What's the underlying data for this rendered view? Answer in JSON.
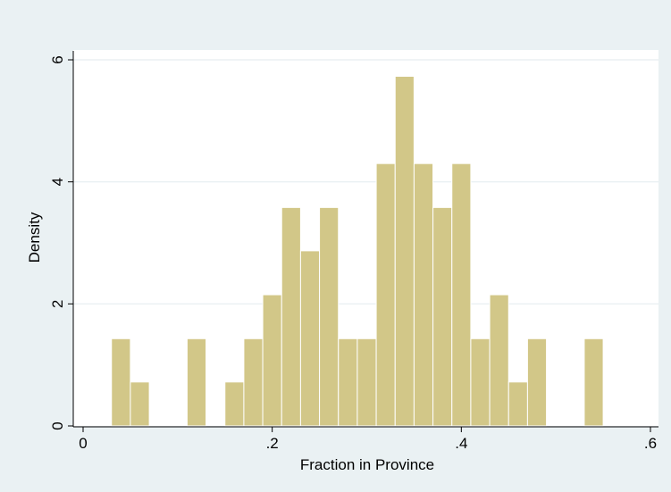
{
  "chart_data": {
    "type": "bar",
    "title": "",
    "xlabel": "Fraction in Province",
    "ylabel": "Density",
    "xlim": [
      0,
      0.6
    ],
    "ylim": [
      0,
      6
    ],
    "grid": true,
    "x_ticks": [
      0,
      0.2,
      0.4,
      0.6
    ],
    "x_tick_labels": [
      "0",
      ".2",
      ".4",
      ".6"
    ],
    "y_ticks": [
      0,
      2,
      4,
      6
    ],
    "y_tick_labels": [
      "0",
      "2",
      "4",
      "6"
    ],
    "bin_width": 0.02,
    "bins": [
      {
        "x0": 0.03,
        "x1": 0.05,
        "value": 1.43
      },
      {
        "x0": 0.05,
        "x1": 0.07,
        "value": 0.72
      },
      {
        "x0": 0.11,
        "x1": 0.13,
        "value": 1.43
      },
      {
        "x0": 0.15,
        "x1": 0.17,
        "value": 0.72
      },
      {
        "x0": 0.17,
        "x1": 0.19,
        "value": 1.43
      },
      {
        "x0": 0.19,
        "x1": 0.21,
        "value": 2.15
      },
      {
        "x0": 0.21,
        "x1": 0.23,
        "value": 3.58
      },
      {
        "x0": 0.23,
        "x1": 0.25,
        "value": 2.87
      },
      {
        "x0": 0.25,
        "x1": 0.27,
        "value": 3.58
      },
      {
        "x0": 0.27,
        "x1": 0.29,
        "value": 1.43
      },
      {
        "x0": 0.29,
        "x1": 0.31,
        "value": 1.43
      },
      {
        "x0": 0.31,
        "x1": 0.33,
        "value": 4.3
      },
      {
        "x0": 0.33,
        "x1": 0.35,
        "value": 5.73
      },
      {
        "x0": 0.35,
        "x1": 0.37,
        "value": 4.3
      },
      {
        "x0": 0.37,
        "x1": 0.39,
        "value": 3.58
      },
      {
        "x0": 0.39,
        "x1": 0.41,
        "value": 4.3
      },
      {
        "x0": 0.41,
        "x1": 0.43,
        "value": 1.43
      },
      {
        "x0": 0.43,
        "x1": 0.45,
        "value": 2.15
      },
      {
        "x0": 0.45,
        "x1": 0.47,
        "value": 0.72
      },
      {
        "x0": 0.47,
        "x1": 0.49,
        "value": 1.43
      },
      {
        "x0": 0.53,
        "x1": 0.55,
        "value": 1.43
      }
    ],
    "colors": {
      "background": "#eaf1f3",
      "plot_background": "#ffffff",
      "bar_fill": "#d2c788",
      "bar_edge": "#ffffff",
      "grid": "#e6eef1",
      "axis": "#000000"
    }
  }
}
